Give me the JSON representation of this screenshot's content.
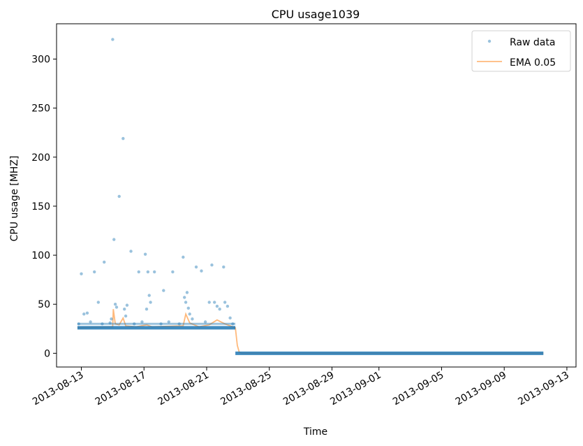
{
  "chart_data": {
    "type": "scatter",
    "title": "CPU usage1039",
    "xlabel": "Time",
    "ylabel": "CPU usage [MHZ]",
    "x_type": "date",
    "xlim": [
      "2013-08-11T10:00",
      "2013-09-13T14:00"
    ],
    "ylim": [
      -14,
      336
    ],
    "x_ticks": [
      "2013-08-13",
      "2013-08-17",
      "2013-08-21",
      "2013-08-25",
      "2013-08-29",
      "2013-09-01",
      "2013-09-05",
      "2013-09-09",
      "2013-09-13"
    ],
    "y_ticks": [
      0,
      50,
      100,
      150,
      200,
      250,
      300
    ],
    "grid": false,
    "legend": {
      "placement": "top-right",
      "entries": [
        "Raw data",
        "EMA 0.05"
      ]
    },
    "colors": {
      "raw": "#1f77b4",
      "ema": "#ff7f0e"
    },
    "series": [
      {
        "name": "Raw data",
        "style": "points",
        "baseline_segments": [
          {
            "from": "2013-08-12T18:00",
            "to": "2013-08-22T20:00",
            "y": 26
          },
          {
            "from": "2013-08-22T20:00",
            "to": "2013-09-11T12:00",
            "y": 0
          }
        ],
        "points": [
          [
            "2013-08-12T20:00",
            30
          ],
          [
            "2013-08-13T00:00",
            81
          ],
          [
            "2013-08-13T04:00",
            40
          ],
          [
            "2013-08-13T09:00",
            41
          ],
          [
            "2013-08-13T14:00",
            32
          ],
          [
            "2013-08-13T20:00",
            83
          ],
          [
            "2013-08-14T02:00",
            52
          ],
          [
            "2013-08-14T08:00",
            30
          ],
          [
            "2013-08-14T11:00",
            93
          ],
          [
            "2013-08-14T20:00",
            31
          ],
          [
            "2013-08-14T22:00",
            35
          ],
          [
            "2013-08-15T00:00",
            320
          ],
          [
            "2013-08-15T02:00",
            116
          ],
          [
            "2013-08-15T04:00",
            50
          ],
          [
            "2013-08-15T06:00",
            47
          ],
          [
            "2013-08-15T10:00",
            160
          ],
          [
            "2013-08-15T16:00",
            219
          ],
          [
            "2013-08-15T18:00",
            45
          ],
          [
            "2013-08-15T20:00",
            38
          ],
          [
            "2013-08-15T22:00",
            49
          ],
          [
            "2013-08-16T04:00",
            104
          ],
          [
            "2013-08-16T09:00",
            30
          ],
          [
            "2013-08-16T16:00",
            83
          ],
          [
            "2013-08-16T21:00",
            32
          ],
          [
            "2013-08-17T02:00",
            101
          ],
          [
            "2013-08-17T04:00",
            45
          ],
          [
            "2013-08-17T06:00",
            83
          ],
          [
            "2013-08-17T08:00",
            59
          ],
          [
            "2013-08-17T10:00",
            52
          ],
          [
            "2013-08-17T16:00",
            83
          ],
          [
            "2013-08-18T02:00",
            30
          ],
          [
            "2013-08-18T06:00",
            64
          ],
          [
            "2013-08-18T14:00",
            32
          ],
          [
            "2013-08-18T20:00",
            83
          ],
          [
            "2013-08-19T06:00",
            30
          ],
          [
            "2013-08-19T12:00",
            98
          ],
          [
            "2013-08-19T14:00",
            57
          ],
          [
            "2013-08-19T16:00",
            52
          ],
          [
            "2013-08-19T18:00",
            62
          ],
          [
            "2013-08-19T20:00",
            46
          ],
          [
            "2013-08-19T22:00",
            40
          ],
          [
            "2013-08-20T02:00",
            35
          ],
          [
            "2013-08-20T08:00",
            88
          ],
          [
            "2013-08-20T16:00",
            84
          ],
          [
            "2013-08-20T22:00",
            32
          ],
          [
            "2013-08-21T04:00",
            52
          ],
          [
            "2013-08-21T08:00",
            90
          ],
          [
            "2013-08-21T12:00",
            52
          ],
          [
            "2013-08-21T16:00",
            48
          ],
          [
            "2013-08-21T20:00",
            45
          ],
          [
            "2013-08-22T02:00",
            88
          ],
          [
            "2013-08-22T04:00",
            52
          ],
          [
            "2013-08-22T08:00",
            48
          ],
          [
            "2013-08-22T12:00",
            36
          ],
          [
            "2013-08-22T16:00",
            30
          ]
        ]
      },
      {
        "name": "EMA 0.05",
        "style": "line",
        "points": [
          [
            "2013-08-12T18:00",
            26
          ],
          [
            "2013-08-14T20:00",
            27
          ],
          [
            "2013-08-15T00:00",
            27
          ],
          [
            "2013-08-15T01:00",
            45
          ],
          [
            "2013-08-15T04:00",
            30
          ],
          [
            "2013-08-15T10:00",
            29
          ],
          [
            "2013-08-15T16:00",
            36
          ],
          [
            "2013-08-15T20:00",
            28
          ],
          [
            "2013-08-16T12:00",
            27
          ],
          [
            "2013-08-17T04:00",
            29
          ],
          [
            "2013-08-17T12:00",
            27
          ],
          [
            "2013-08-19T12:00",
            28
          ],
          [
            "2013-08-19T16:00",
            40
          ],
          [
            "2013-08-19T22:00",
            31
          ],
          [
            "2013-08-20T12:00",
            27
          ],
          [
            "2013-08-21T04:00",
            29
          ],
          [
            "2013-08-21T16:00",
            34
          ],
          [
            "2013-08-22T04:00",
            30
          ],
          [
            "2013-08-22T16:00",
            27
          ],
          [
            "2013-08-22T20:00",
            26
          ],
          [
            "2013-08-22T23:00",
            8
          ],
          [
            "2013-08-23T02:00",
            1
          ],
          [
            "2013-08-23T06:00",
            0
          ],
          [
            "2013-09-11T12:00",
            0
          ]
        ]
      }
    ]
  }
}
